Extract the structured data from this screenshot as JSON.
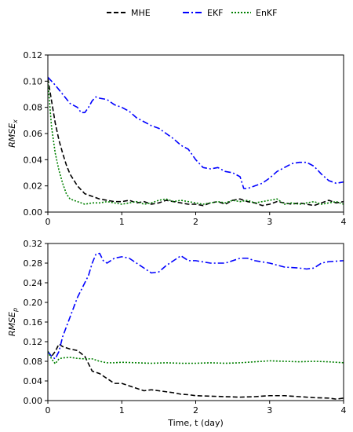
{
  "chart_data": {
    "type": "line",
    "legend": {
      "placement": "top-center",
      "entries": [
        {
          "label": "MHE",
          "color": "#000000",
          "style": "dashed"
        },
        {
          "label": "EKF",
          "color": "#0000ff",
          "style": "dashdot"
        },
        {
          "label": "EnKF",
          "color": "#008000",
          "style": "dotted"
        }
      ]
    },
    "panels": [
      {
        "ylabel_base": "RMSE",
        "ylabel_sub": "x",
        "ylim": [
          0,
          0.12
        ],
        "yticks": [
          "0.00",
          "0.02",
          "0.04",
          "0.06",
          "0.08",
          "0.10",
          "0.12"
        ],
        "ytick_values": [
          0,
          0.02,
          0.04,
          0.06,
          0.08,
          0.1,
          0.12
        ],
        "xlim": [
          0,
          4
        ],
        "xticks": [
          "0",
          "1",
          "2",
          "3",
          "4"
        ],
        "xtick_values": [
          0,
          1,
          2,
          3,
          4
        ],
        "series": [
          {
            "name": "MHE",
            "x": [
              0,
              0.05,
              0.1,
              0.15,
              0.2,
              0.25,
              0.3,
              0.4,
              0.5,
              0.6,
              0.7,
              0.8,
              0.9,
              1.0,
              1.1,
              1.2,
              1.3,
              1.4,
              1.5,
              1.6,
              1.7,
              1.8,
              1.9,
              2.0,
              2.1,
              2.2,
              2.3,
              2.4,
              2.5,
              2.6,
              2.7,
              2.8,
              2.9,
              3.0,
              3.1,
              3.2,
              3.3,
              3.4,
              3.5,
              3.6,
              3.7,
              3.8,
              3.9,
              4.0
            ],
            "y": [
              0.102,
              0.085,
              0.068,
              0.055,
              0.045,
              0.036,
              0.029,
              0.02,
              0.014,
              0.012,
              0.01,
              0.009,
              0.008,
              0.008,
              0.009,
              0.007,
              0.008,
              0.006,
              0.007,
              0.009,
              0.008,
              0.007,
              0.006,
              0.006,
              0.005,
              0.007,
              0.008,
              0.006,
              0.009,
              0.01,
              0.008,
              0.007,
              0.005,
              0.006,
              0.008,
              0.007,
              0.006,
              0.007,
              0.006,
              0.005,
              0.007,
              0.009,
              0.007,
              0.008
            ]
          },
          {
            "name": "EKF",
            "x": [
              0,
              0.05,
              0.1,
              0.2,
              0.3,
              0.4,
              0.45,
              0.5,
              0.55,
              0.6,
              0.65,
              0.7,
              0.8,
              0.9,
              1.0,
              1.1,
              1.2,
              1.3,
              1.4,
              1.5,
              1.6,
              1.7,
              1.8,
              1.9,
              2.0,
              2.1,
              2.2,
              2.3,
              2.4,
              2.5,
              2.6,
              2.65,
              2.7,
              2.8,
              2.9,
              3.0,
              3.1,
              3.2,
              3.3,
              3.4,
              3.5,
              3.6,
              3.7,
              3.8,
              3.9,
              4.0
            ],
            "y": [
              0.103,
              0.1,
              0.097,
              0.09,
              0.083,
              0.08,
              0.076,
              0.076,
              0.08,
              0.085,
              0.088,
              0.087,
              0.086,
              0.082,
              0.08,
              0.077,
              0.072,
              0.069,
              0.066,
              0.064,
              0.06,
              0.056,
              0.051,
              0.048,
              0.04,
              0.034,
              0.033,
              0.034,
              0.031,
              0.03,
              0.027,
              0.018,
              0.018,
              0.02,
              0.022,
              0.026,
              0.031,
              0.034,
              0.037,
              0.038,
              0.038,
              0.035,
              0.029,
              0.024,
              0.022,
              0.023
            ]
          },
          {
            "name": "EnKF",
            "x": [
              0,
              0.05,
              0.1,
              0.15,
              0.2,
              0.25,
              0.3,
              0.4,
              0.5,
              0.6,
              0.7,
              0.8,
              0.9,
              1.0,
              1.1,
              1.2,
              1.3,
              1.4,
              1.5,
              1.6,
              1.7,
              1.8,
              1.9,
              2.0,
              2.1,
              2.2,
              2.3,
              2.4,
              2.5,
              2.6,
              2.7,
              2.8,
              2.9,
              3.0,
              3.1,
              3.2,
              3.3,
              3.4,
              3.5,
              3.6,
              3.7,
              3.8,
              3.9,
              4.0
            ],
            "y": [
              0.1,
              0.065,
              0.045,
              0.032,
              0.022,
              0.014,
              0.01,
              0.008,
              0.006,
              0.007,
              0.007,
              0.008,
              0.007,
              0.006,
              0.007,
              0.008,
              0.006,
              0.007,
              0.009,
              0.01,
              0.008,
              0.009,
              0.008,
              0.007,
              0.006,
              0.007,
              0.008,
              0.007,
              0.009,
              0.008,
              0.009,
              0.007,
              0.008,
              0.009,
              0.01,
              0.006,
              0.007,
              0.006,
              0.007,
              0.008,
              0.006,
              0.007,
              0.008,
              0.006
            ]
          }
        ]
      },
      {
        "ylabel_base": "RMSE",
        "ylabel_sub": "p",
        "xlabel": "Time, t (day)",
        "ylim": [
          0,
          0.32
        ],
        "yticks": [
          "0.00",
          "0.04",
          "0.08",
          "0.12",
          "0.16",
          "0.20",
          "0.24",
          "0.28",
          "0.32"
        ],
        "ytick_values": [
          0,
          0.04,
          0.08,
          0.12,
          0.16,
          0.2,
          0.24,
          0.28,
          0.32
        ],
        "xlim": [
          0,
          4
        ],
        "xticks": [
          "0",
          "1",
          "2",
          "3",
          "4"
        ],
        "xtick_values": [
          0,
          1,
          2,
          3,
          4
        ],
        "series": [
          {
            "name": "MHE",
            "x": [
              0,
              0.05,
              0.1,
              0.15,
              0.2,
              0.3,
              0.4,
              0.5,
              0.6,
              0.7,
              0.8,
              0.9,
              1.0,
              1.1,
              1.2,
              1.3,
              1.4,
              1.5,
              1.6,
              1.7,
              1.8,
              1.9,
              2.0,
              2.2,
              2.4,
              2.6,
              2.8,
              3.0,
              3.2,
              3.4,
              3.6,
              3.8,
              3.9,
              4.0
            ],
            "y": [
              0.1,
              0.09,
              0.1,
              0.115,
              0.11,
              0.105,
              0.102,
              0.09,
              0.06,
              0.055,
              0.045,
              0.035,
              0.035,
              0.03,
              0.025,
              0.02,
              0.022,
              0.02,
              0.018,
              0.016,
              0.013,
              0.012,
              0.01,
              0.009,
              0.008,
              0.007,
              0.008,
              0.01,
              0.01,
              0.008,
              0.006,
              0.005,
              0.003,
              0.005
            ]
          },
          {
            "name": "EKF",
            "x": [
              0,
              0.05,
              0.1,
              0.15,
              0.2,
              0.3,
              0.4,
              0.5,
              0.55,
              0.6,
              0.65,
              0.7,
              0.75,
              0.8,
              0.9,
              1.0,
              1.1,
              1.2,
              1.3,
              1.4,
              1.5,
              1.6,
              1.7,
              1.8,
              1.9,
              2.0,
              2.2,
              2.4,
              2.6,
              2.7,
              2.8,
              3.0,
              3.2,
              3.4,
              3.5,
              3.6,
              3.7,
              3.8,
              4.0
            ],
            "y": [
              0.1,
              0.09,
              0.085,
              0.1,
              0.13,
              0.17,
              0.21,
              0.24,
              0.255,
              0.28,
              0.298,
              0.3,
              0.285,
              0.28,
              0.29,
              0.293,
              0.29,
              0.28,
              0.27,
              0.26,
              0.262,
              0.275,
              0.285,
              0.295,
              0.285,
              0.285,
              0.28,
              0.28,
              0.29,
              0.29,
              0.285,
              0.28,
              0.272,
              0.27,
              0.268,
              0.27,
              0.28,
              0.283,
              0.285
            ]
          },
          {
            "name": "EnKF",
            "x": [
              0,
              0.05,
              0.1,
              0.15,
              0.2,
              0.3,
              0.4,
              0.5,
              0.6,
              0.7,
              0.8,
              0.9,
              1.0,
              1.2,
              1.4,
              1.6,
              1.8,
              2.0,
              2.2,
              2.4,
              2.6,
              2.8,
              3.0,
              3.2,
              3.4,
              3.6,
              3.8,
              4.0
            ],
            "y": [
              0.1,
              0.085,
              0.075,
              0.085,
              0.087,
              0.088,
              0.086,
              0.085,
              0.085,
              0.08,
              0.077,
              0.077,
              0.078,
              0.077,
              0.076,
              0.077,
              0.076,
              0.076,
              0.077,
              0.076,
              0.077,
              0.079,
              0.081,
              0.08,
              0.079,
              0.08,
              0.079,
              0.077
            ]
          }
        ]
      }
    ]
  }
}
